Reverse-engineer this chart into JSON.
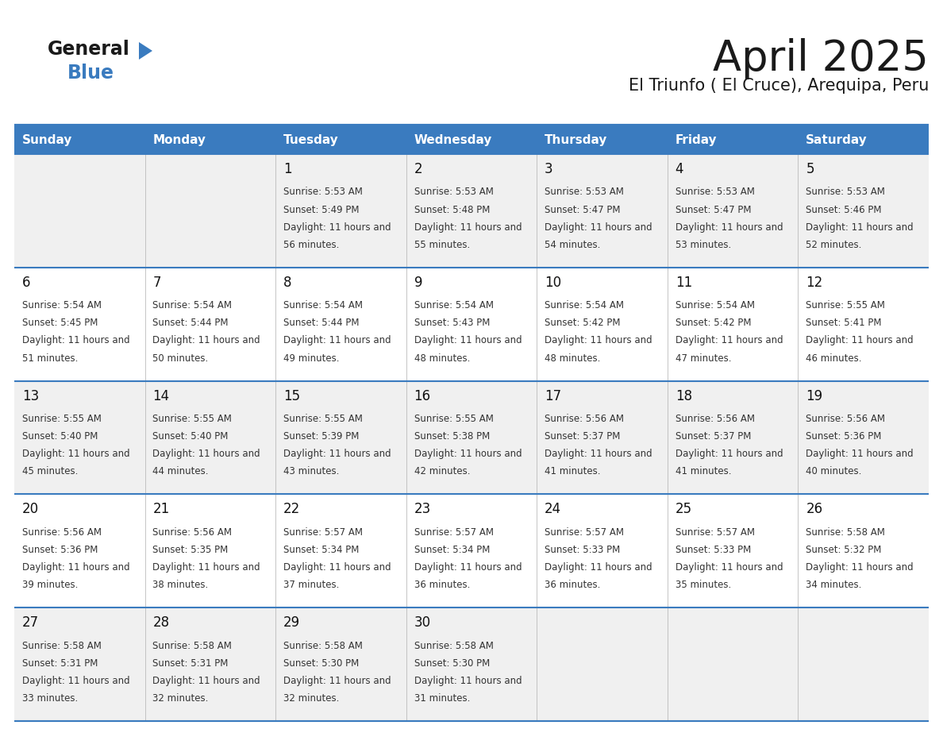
{
  "title": "April 2025",
  "subtitle": "El Triunfo ( El Cruce), Arequipa, Peru",
  "days_of_week": [
    "Sunday",
    "Monday",
    "Tuesday",
    "Wednesday",
    "Thursday",
    "Friday",
    "Saturday"
  ],
  "header_bg": "#3a7bbf",
  "header_text": "#ffffff",
  "row_bg_light": "#f0f0f0",
  "row_bg_white": "#ffffff",
  "cell_border_color": "#bbbbbb",
  "week_border_color": "#3a7bbf",
  "text_color": "#333333",
  "day_num_color": "#111111",
  "title_color": "#1a1a1a",
  "subtitle_color": "#1a1a1a",
  "logo_general_color": "#1a1a1a",
  "logo_blue_color": "#3a7bbf",
  "logo_triangle_color": "#3a7bbf",
  "calendar_data": {
    "1": {
      "sunrise": "5:53 AM",
      "sunset": "5:49 PM",
      "daylight": "11 hours and 56 minutes"
    },
    "2": {
      "sunrise": "5:53 AM",
      "sunset": "5:48 PM",
      "daylight": "11 hours and 55 minutes"
    },
    "3": {
      "sunrise": "5:53 AM",
      "sunset": "5:47 PM",
      "daylight": "11 hours and 54 minutes"
    },
    "4": {
      "sunrise": "5:53 AM",
      "sunset": "5:47 PM",
      "daylight": "11 hours and 53 minutes"
    },
    "5": {
      "sunrise": "5:53 AM",
      "sunset": "5:46 PM",
      "daylight": "11 hours and 52 minutes"
    },
    "6": {
      "sunrise": "5:54 AM",
      "sunset": "5:45 PM",
      "daylight": "11 hours and 51 minutes"
    },
    "7": {
      "sunrise": "5:54 AM",
      "sunset": "5:44 PM",
      "daylight": "11 hours and 50 minutes"
    },
    "8": {
      "sunrise": "5:54 AM",
      "sunset": "5:44 PM",
      "daylight": "11 hours and 49 minutes"
    },
    "9": {
      "sunrise": "5:54 AM",
      "sunset": "5:43 PM",
      "daylight": "11 hours and 48 minutes"
    },
    "10": {
      "sunrise": "5:54 AM",
      "sunset": "5:42 PM",
      "daylight": "11 hours and 48 minutes"
    },
    "11": {
      "sunrise": "5:54 AM",
      "sunset": "5:42 PM",
      "daylight": "11 hours and 47 minutes"
    },
    "12": {
      "sunrise": "5:55 AM",
      "sunset": "5:41 PM",
      "daylight": "11 hours and 46 minutes"
    },
    "13": {
      "sunrise": "5:55 AM",
      "sunset": "5:40 PM",
      "daylight": "11 hours and 45 minutes"
    },
    "14": {
      "sunrise": "5:55 AM",
      "sunset": "5:40 PM",
      "daylight": "11 hours and 44 minutes"
    },
    "15": {
      "sunrise": "5:55 AM",
      "sunset": "5:39 PM",
      "daylight": "11 hours and 43 minutes"
    },
    "16": {
      "sunrise": "5:55 AM",
      "sunset": "5:38 PM",
      "daylight": "11 hours and 42 minutes"
    },
    "17": {
      "sunrise": "5:56 AM",
      "sunset": "5:37 PM",
      "daylight": "11 hours and 41 minutes"
    },
    "18": {
      "sunrise": "5:56 AM",
      "sunset": "5:37 PM",
      "daylight": "11 hours and 41 minutes"
    },
    "19": {
      "sunrise": "5:56 AM",
      "sunset": "5:36 PM",
      "daylight": "11 hours and 40 minutes"
    },
    "20": {
      "sunrise": "5:56 AM",
      "sunset": "5:36 PM",
      "daylight": "11 hours and 39 minutes"
    },
    "21": {
      "sunrise": "5:56 AM",
      "sunset": "5:35 PM",
      "daylight": "11 hours and 38 minutes"
    },
    "22": {
      "sunrise": "5:57 AM",
      "sunset": "5:34 PM",
      "daylight": "11 hours and 37 minutes"
    },
    "23": {
      "sunrise": "5:57 AM",
      "sunset": "5:34 PM",
      "daylight": "11 hours and 36 minutes"
    },
    "24": {
      "sunrise": "5:57 AM",
      "sunset": "5:33 PM",
      "daylight": "11 hours and 36 minutes"
    },
    "25": {
      "sunrise": "5:57 AM",
      "sunset": "5:33 PM",
      "daylight": "11 hours and 35 minutes"
    },
    "26": {
      "sunrise": "5:58 AM",
      "sunset": "5:32 PM",
      "daylight": "11 hours and 34 minutes"
    },
    "27": {
      "sunrise": "5:58 AM",
      "sunset": "5:31 PM",
      "daylight": "11 hours and 33 minutes"
    },
    "28": {
      "sunrise": "5:58 AM",
      "sunset": "5:31 PM",
      "daylight": "11 hours and 32 minutes"
    },
    "29": {
      "sunrise": "5:58 AM",
      "sunset": "5:30 PM",
      "daylight": "11 hours and 32 minutes"
    },
    "30": {
      "sunrise": "5:58 AM",
      "sunset": "5:30 PM",
      "daylight": "11 hours and 31 minutes"
    }
  },
  "weeks": [
    [
      null,
      null,
      1,
      2,
      3,
      4,
      5
    ],
    [
      6,
      7,
      8,
      9,
      10,
      11,
      12
    ],
    [
      13,
      14,
      15,
      16,
      17,
      18,
      19
    ],
    [
      20,
      21,
      22,
      23,
      24,
      25,
      26
    ],
    [
      27,
      28,
      29,
      30,
      null,
      null,
      null
    ]
  ]
}
